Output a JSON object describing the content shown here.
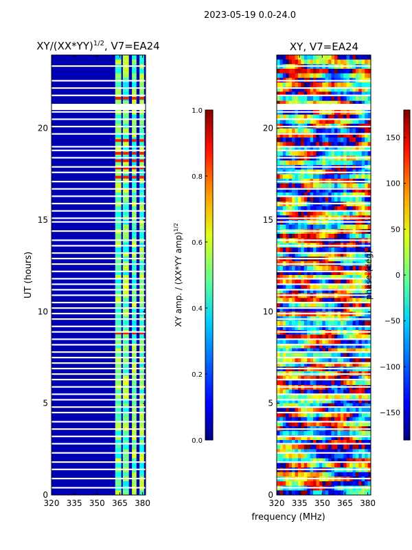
{
  "figure": {
    "suptitle": "2023-05-19 0.0-24.0",
    "xlabel": "frequency (MHz)"
  },
  "colors": {
    "jet": [
      "#000080",
      "#0000ff",
      "#0080ff",
      "#00ffff",
      "#80ff80",
      "#ffff00",
      "#ff8000",
      "#ff0000",
      "#800000"
    ],
    "gap": "#ffffff"
  },
  "chart_data": [
    {
      "type": "heatmap",
      "title": "XY/(XX*YY)",
      "title_sup": "1/2",
      "title_suffix": ", V7=EA24",
      "xlabel": "",
      "ylabel": "UT (hours)",
      "xlim": [
        320,
        382
      ],
      "ylim": [
        0,
        24
      ],
      "xticks": [
        320,
        335,
        350,
        365,
        380
      ],
      "yticks": [
        0,
        5,
        10,
        15,
        20
      ],
      "colorbar": {
        "label": "XY amp. / (XX*YY amp)",
        "label_sup": "1/2",
        "vmin": 0.0,
        "vmax": 1.0,
        "ticks": [
          "0.0",
          "0.2",
          "0.4",
          "0.6",
          "0.8",
          "1.0"
        ]
      },
      "baseline_value": 0.05,
      "bright_channels_MHz": [
        [
          362,
          366
        ],
        [
          367,
          371
        ],
        [
          373,
          376
        ],
        [
          378,
          381
        ]
      ],
      "bright_value_range": [
        0.35,
        0.6
      ],
      "hot_rows_hours": [
        18.2,
        18.6,
        19.3,
        17.8,
        17.3,
        21.6,
        21.2,
        8.8
      ]
    },
    {
      "type": "heatmap",
      "title": "XY, V7=EA24",
      "xlabel": "",
      "ylabel": "",
      "xlim": [
        320,
        382
      ],
      "ylim": [
        0,
        24
      ],
      "xticks": [
        320,
        335,
        350,
        365,
        380
      ],
      "yticks": [
        0,
        5,
        10,
        15,
        20
      ],
      "colorbar": {
        "label": "phase (deg)",
        "vmin": -180,
        "vmax": 180,
        "ticks": [
          "−150",
          "−100",
          "−50",
          "0",
          "50",
          "100",
          "150"
        ]
      },
      "value_range_deg": [
        -180,
        180
      ]
    }
  ],
  "gap_rows_hours": [
    23.4,
    22.6,
    22.2,
    21.8,
    21.3,
    20.9,
    20.5,
    20.1,
    19.7,
    19.0,
    18.8,
    18.4,
    17.9,
    17.6,
    17.1,
    16.7,
    16.3,
    15.9,
    15.5,
    15.1,
    14.9,
    14.4,
    13.9,
    13.6,
    13.2,
    12.9,
    12.6,
    12.2,
    11.8,
    11.5,
    11.2,
    10.9,
    10.5,
    10.2,
    9.9,
    9.6,
    9.2,
    8.9,
    8.5,
    8.2,
    7.8,
    7.5,
    7.2,
    6.9,
    6.6,
    6.3,
    5.9,
    5.5,
    5.2,
    4.8,
    4.5,
    4.0,
    3.6,
    3.2,
    2.8,
    2.3,
    1.8,
    1.4,
    0.9,
    0.4
  ]
}
